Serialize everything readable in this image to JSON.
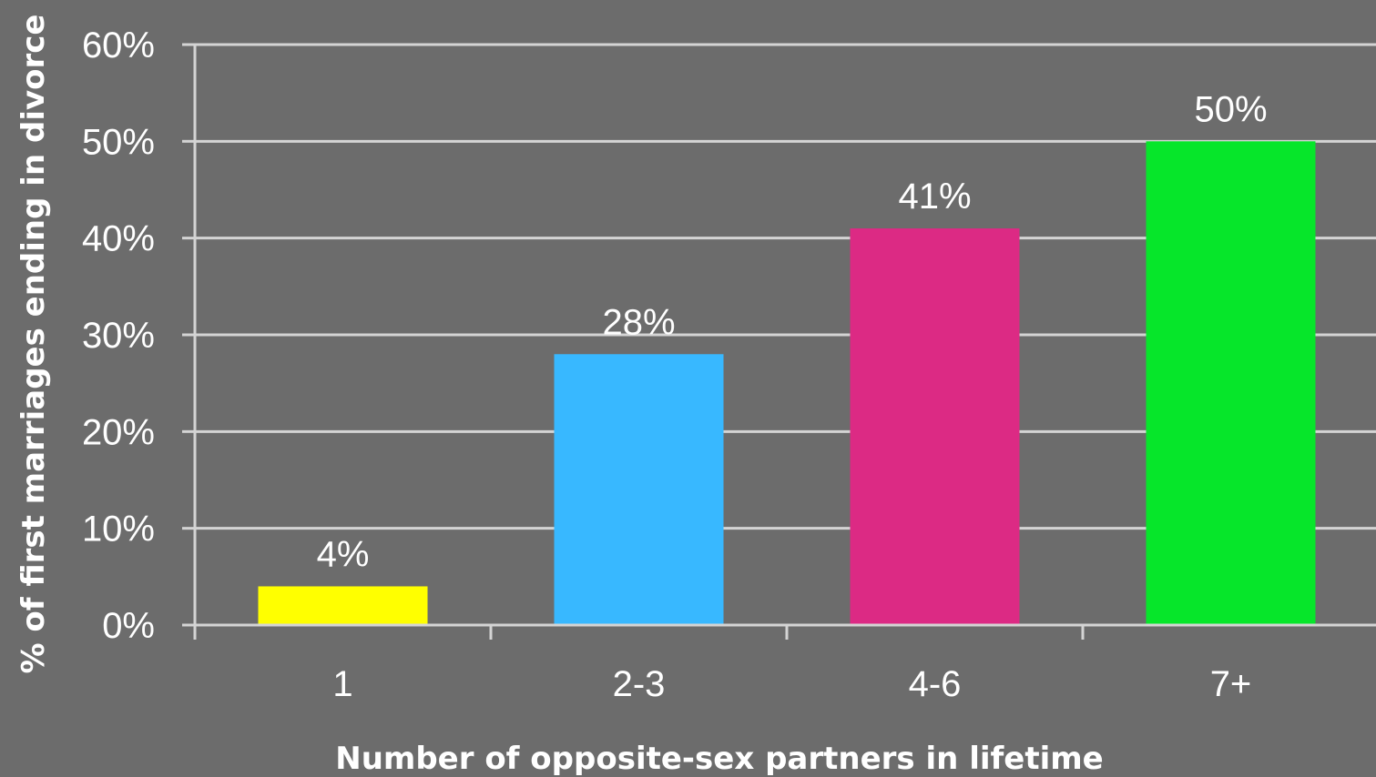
{
  "chart_data": {
    "type": "bar",
    "title": "",
    "xlabel": "Number of opposite-sex partners in lifetime",
    "ylabel": "% of first marriages ending in divorce",
    "categories": [
      "1",
      "2-3",
      "4-6",
      "7+"
    ],
    "values": [
      4,
      28,
      41,
      50
    ],
    "value_labels": [
      "4%",
      "28%",
      "41%",
      "50%"
    ],
    "ylim": [
      0,
      60
    ],
    "yticks": [
      0,
      10,
      20,
      30,
      40,
      50,
      60
    ],
    "ytick_labels": [
      "0%",
      "10%",
      "20%",
      "30%",
      "40%",
      "50%",
      "60%"
    ],
    "bar_colors": [
      "#ffff00",
      "#38b8ff",
      "#dc2a84",
      "#06e62a"
    ],
    "background_color": "#6c6c6c",
    "grid": true,
    "legend": "none"
  }
}
